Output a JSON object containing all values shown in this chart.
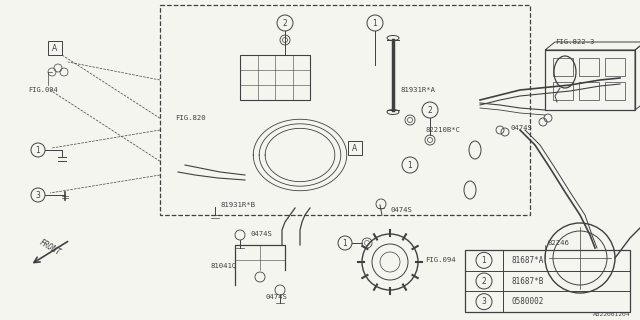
{
  "bg_color": "#f5f5f0",
  "line_color": "#404040",
  "part_id": "A822001204",
  "legend_items": [
    {
      "num": "1",
      "text": "81687*A"
    },
    {
      "num": "2",
      "text": "81687*B"
    },
    {
      "num": "3",
      "text": "0580002"
    }
  ]
}
